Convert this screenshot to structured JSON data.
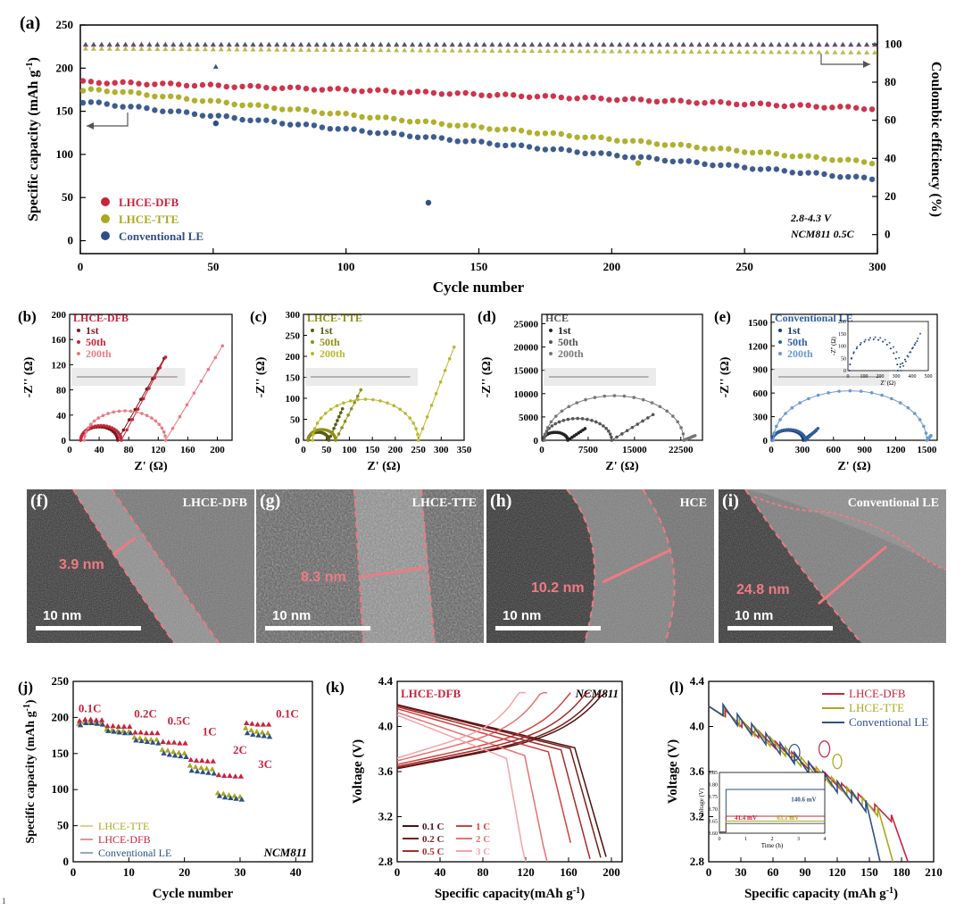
{
  "colors": {
    "red": "#c8243e",
    "olive": "#a9a81f",
    "navy": "#2e4f86",
    "pink": "#f07a84",
    "k01": "#4a1010",
    "k02": "#7a1a1a",
    "k05": "#a82a2a",
    "k1": "#d64040",
    "k2": "#e87070",
    "k3": "#f2a3a8"
  },
  "chart_data": [
    {
      "id": "a",
      "panel_label": "(a)",
      "type": "scatter",
      "xlabel": "Cycle number",
      "ylabel": "Specific capacity (mAh g",
      "ylabel_sup": "-1",
      "ylabel_close": ")",
      "y2label": "Coulombic efficiency (%)",
      "xlim": [
        0,
        300
      ],
      "ylim": [
        -15,
        250
      ],
      "y2lim": [
        -10,
        110
      ],
      "xticks": [
        "0",
        "50",
        "100",
        "150",
        "200",
        "250",
        "300"
      ],
      "yticks": [
        "0",
        "50",
        "100",
        "150",
        "200",
        "250"
      ],
      "y2ticks": [
        "0",
        "20",
        "40",
        "60",
        "80",
        "100"
      ],
      "annotation_line1": "2.8-4.3 V",
      "annotation_line2": "NCM811 0.5C",
      "series": [
        {
          "name": "LHCE-DFB",
          "color": "#c8243e",
          "capacity_start": 184,
          "capacity_end": 153,
          "ce": 99.5
        },
        {
          "name": "LHCE-TTE",
          "color": "#a9a81f",
          "capacity_start": 178,
          "capacity_end": 90,
          "ce": 97.5,
          "outliers": [
            [
              210,
              90
            ]
          ]
        },
        {
          "name": "Conventional LE",
          "color": "#2e4f86",
          "capacity_start": 162,
          "capacity_end": 71,
          "ce": 99.8,
          "outliers": [
            [
              51,
              136
            ],
            [
              131,
              44
            ]
          ],
          "ce_outliers": [
            [
              51,
              88
            ]
          ]
        }
      ]
    },
    {
      "id": "b",
      "panel_label": "(b)",
      "type": "line",
      "title": "LHCE-DFB",
      "xlabel": "Z' (Ω)",
      "ylabel": "-Z'' (Ω)",
      "xlim": [
        0,
        220
      ],
      "ylim": [
        0,
        200
      ],
      "xticks": [
        "0",
        "40",
        "80",
        "120",
        "160",
        "200"
      ],
      "yticks": [
        "0",
        "40",
        "80",
        "120",
        "160",
        "200"
      ],
      "series": [
        {
          "name": "1st",
          "color": "#7a1a1a",
          "r_s": 15,
          "r_ct": 50,
          "tail_end": [
            128,
            130
          ]
        },
        {
          "name": "50th",
          "color": "#c8243e",
          "r_s": 15,
          "r_ct": 55,
          "tail_end": [
            130,
            132
          ]
        },
        {
          "name": "200th",
          "color": "#e87a84",
          "r_s": 20,
          "r_ct": 110,
          "tail_end": [
            207,
            150
          ]
        }
      ]
    },
    {
      "id": "c",
      "panel_label": "(c)",
      "type": "line",
      "title": "LHCE-TTE",
      "xlabel": "Z' (Ω)",
      "ylabel": "-Z'' (Ω)",
      "xlim": [
        0,
        350
      ],
      "ylim": [
        0,
        300
      ],
      "xticks": [
        "0",
        "50",
        "100",
        "150",
        "200",
        "250",
        "300",
        "350"
      ],
      "yticks": [
        "0",
        "50",
        "100",
        "150",
        "200",
        "250",
        "300"
      ],
      "series": [
        {
          "name": "1st",
          "color": "#5a5a10",
          "r_s": 10,
          "r_ct": 45,
          "tail_end": [
            85,
            75
          ]
        },
        {
          "name": "50th",
          "color": "#8f8f15",
          "r_s": 10,
          "r_ct": 60,
          "tail_end": [
            125,
            120
          ]
        },
        {
          "name": "200th",
          "color": "#b8b830",
          "r_s": 20,
          "r_ct": 230,
          "tail_end": [
            328,
            222
          ]
        }
      ]
    },
    {
      "id": "d",
      "panel_label": "(d)",
      "type": "line",
      "title": "HCE",
      "xlabel": "Z' (Ω)",
      "ylabel": "-Z'' (Ω)",
      "xlim": [
        0,
        26000
      ],
      "ylim": [
        0,
        27000
      ],
      "xticks": [
        "0",
        "7500",
        "15000",
        "22500"
      ],
      "yticks": [
        "0",
        "5000",
        "10000",
        "15000",
        "20000",
        "25000"
      ],
      "series": [
        {
          "name": "1st",
          "color": "#222222",
          "r_s": 200,
          "r_ct": 4000,
          "tail_end": [
            7000,
            2500
          ]
        },
        {
          "name": "50th",
          "color": "#555555",
          "r_s": 300,
          "r_ct": 11000,
          "tail_end": [
            18000,
            5500
          ]
        },
        {
          "name": "200th",
          "color": "#777777",
          "r_s": 500,
          "r_ct": 22500,
          "tail_end": [
            24800,
            1000
          ]
        }
      ]
    },
    {
      "id": "e",
      "panel_label": "(e)",
      "type": "line",
      "title": "Conventional LE",
      "xlabel": "Z' (Ω)",
      "ylabel": "-Z'' (Ω)",
      "xlim": [
        0,
        1600
      ],
      "ylim": [
        0,
        1600
      ],
      "xticks": [
        "0",
        "300",
        "600",
        "900",
        "1200",
        "1500"
      ],
      "yticks": [
        "0",
        "300",
        "600",
        "900",
        "1200",
        "1500"
      ],
      "inset_xlabel": "Z' (Ω)",
      "inset_ylabel": "-Z'' (Ω)",
      "inset_xticks": [
        "0",
        "100",
        "200",
        "300",
        "400",
        "500"
      ],
      "inset_yticks": [
        "0",
        "50",
        "100",
        "150",
        "200"
      ],
      "series": [
        {
          "name": "1st",
          "color": "#1e3a6a",
          "r_s": 10,
          "r_ct": 300,
          "tail_end": [
            430,
            120
          ]
        },
        {
          "name": "50th",
          "color": "#2e5f9e",
          "r_s": 10,
          "r_ct": 320,
          "tail_end": [
            450,
            150
          ]
        },
        {
          "name": "200th",
          "color": "#6a9ad0",
          "r_s": 20,
          "r_ct": 1480,
          "tail_end": [
            1540,
            60
          ]
        }
      ]
    },
    {
      "id": "j",
      "panel_label": "(j)",
      "type": "scatter",
      "xlabel": "Cycle number",
      "ylabel": "Specific capacity (mAh g",
      "ylabel_sup": "-1",
      "ylabel_close": ")",
      "xlim": [
        0,
        43
      ],
      "ylim": [
        0,
        250
      ],
      "xticks": [
        "0",
        "10",
        "20",
        "30",
        "40"
      ],
      "yticks": [
        "0",
        "50",
        "100",
        "150",
        "200",
        "250"
      ],
      "tag": "NCM811",
      "rate_labels": [
        "0.1C",
        "0.2C",
        "0.5C",
        "1C",
        "2C",
        "3C",
        "0.1C"
      ],
      "series": [
        {
          "name": "LHCE-TTE",
          "color": "#a9a81f",
          "values": [
            191,
            193,
            193,
            192,
            191,
            183,
            182,
            181,
            181,
            180,
            172,
            171,
            170,
            169,
            169,
            155,
            154,
            152,
            151,
            150,
            133,
            131,
            130,
            129,
            128,
            95,
            94,
            92,
            91,
            90,
            185,
            182,
            180,
            179,
            178
          ]
        },
        {
          "name": "LHCE-DFB",
          "color": "#c8243e",
          "values": [
            195,
            197,
            197,
            196,
            196,
            188,
            188,
            187,
            187,
            187,
            179,
            179,
            178,
            178,
            178,
            166,
            165,
            165,
            164,
            164,
            141,
            140,
            140,
            139,
            139,
            120,
            119,
            119,
            118,
            118,
            192,
            191,
            190,
            190,
            190
          ]
        },
        {
          "name": "Conventional LE",
          "color": "#2e4f86",
          "values": [
            189,
            192,
            192,
            191,
            190,
            181,
            180,
            179,
            178,
            178,
            168,
            167,
            166,
            165,
            164,
            150,
            148,
            147,
            146,
            145,
            126,
            125,
            124,
            123,
            122,
            91,
            89,
            88,
            87,
            86,
            178,
            176,
            175,
            174,
            173
          ]
        }
      ]
    },
    {
      "id": "k",
      "panel_label": "(k)",
      "type": "line",
      "title": "LHCE-DFB",
      "tag": "NCM811",
      "xlabel": "Specific capacity(mAh g",
      "xlabel_sup": "-1",
      "xlabel_close": ")",
      "ylabel": "Voltage (V)",
      "xlim": [
        0,
        210
      ],
      "ylim": [
        2.8,
        4.4
      ],
      "xticks": [
        "0",
        "40",
        "80",
        "120",
        "160",
        "200"
      ],
      "yticks": [
        "2.8",
        "3.2",
        "3.6",
        "4.0",
        "4.4"
      ],
      "series": [
        {
          "name": "0.1 C",
          "color": "#4a1010",
          "capacity": 195
        },
        {
          "name": "1 C",
          "color": "#d64040",
          "capacity": 166
        },
        {
          "name": "0.2 C",
          "color": "#7a1a1a",
          "capacity": 190
        },
        {
          "name": "2 C",
          "color": "#e87070",
          "capacity": 140
        },
        {
          "name": "0.5 C",
          "color": "#a82a2a",
          "capacity": 180
        },
        {
          "name": "3 C",
          "color": "#f2a3a8",
          "capacity": 120
        }
      ]
    },
    {
      "id": "l",
      "panel_label": "(l)",
      "type": "line",
      "xlabel": "Specific capacity (mAh g",
      "xlabel_sup": "-1",
      "xlabel_close": ")",
      "ylabel": "Voltage (V)",
      "xlim": [
        0,
        210
      ],
      "ylim": [
        2.8,
        4.4
      ],
      "xticks": [
        "0",
        "30",
        "60",
        "90",
        "120",
        "150",
        "180",
        "210"
      ],
      "yticks": [
        "2.8",
        "3.2",
        "3.6",
        "4.0",
        "4.4"
      ],
      "inset_xlabel": "Time (h)",
      "inset_ylabel": "Voltage (V)",
      "inset_xticks": [
        "0",
        "1",
        "2",
        "3",
        "4"
      ],
      "inset_yticks": [
        "3.60",
        "3.65",
        "3.70",
        "3.75",
        "3.80",
        "3.85"
      ],
      "inset_annotations": [
        "140.6 mV",
        "41.4 mV",
        "63.1 mV"
      ],
      "series": [
        {
          "name": "LHCE-DFB",
          "color": "#c8243e",
          "capacity": 186
        },
        {
          "name": "LHCE-TTE",
          "color": "#a9a81f",
          "capacity": 172
        },
        {
          "name": "Conventional LE",
          "color": "#2e4f86",
          "capacity": 160
        }
      ]
    }
  ],
  "tem": [
    {
      "label": "(f)",
      "name": "LHCE-DFB",
      "thickness": "3.9 nm",
      "scale": "10 nm"
    },
    {
      "label": "(g)",
      "name": "LHCE-TTE",
      "thickness": "8.3 nm",
      "scale": "10 nm"
    },
    {
      "label": "(h)",
      "name": "HCE",
      "thickness": "10.2 nm",
      "scale": "10 nm"
    },
    {
      "label": "(i)",
      "name": "Conventional LE",
      "thickness": "24.8 nm",
      "scale": "10 nm"
    }
  ],
  "footnote": "1"
}
